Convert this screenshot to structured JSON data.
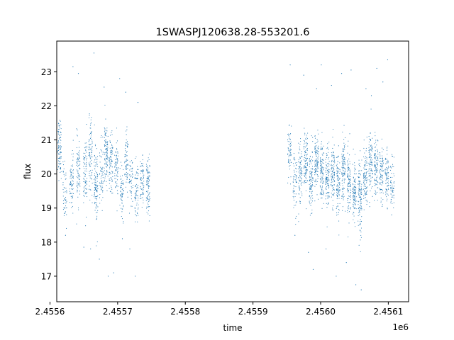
{
  "chart_data": {
    "type": "scatter",
    "title": "1SWASPJ120638.28-553201.6",
    "xlabel": "time",
    "ylabel": "flux",
    "x_offset_label": "1e6",
    "xlim": [
      2.45561,
      2.45613
    ],
    "ylim": [
      16.25,
      23.9
    ],
    "x_ticks": [
      2.4556,
      2.4557,
      2.4558,
      2.4559,
      2.456,
      2.4561
    ],
    "x_tick_labels": [
      "2.4556",
      "2.4557",
      "2.4558",
      "2.4559",
      "2.4560",
      "2.4561"
    ],
    "y_ticks": [
      17,
      18,
      19,
      20,
      21,
      22,
      23
    ],
    "y_tick_labels": [
      "17",
      "18",
      "19",
      "20",
      "21",
      "22",
      "23"
    ],
    "grid": false,
    "marker_color": "#1f77b4",
    "series": [
      {
        "name": "",
        "clusters": [
          {
            "x": 2.455614,
            "center": 20.8,
            "spread": 0.55,
            "n": 90
          },
          {
            "x": 2.455622,
            "center": 19.4,
            "spread": 0.6,
            "n": 50
          },
          {
            "x": 2.455632,
            "center": 19.8,
            "spread": 0.55,
            "n": 70
          },
          {
            "x": 2.455642,
            "center": 20.1,
            "spread": 0.6,
            "n": 80
          },
          {
            "x": 2.455652,
            "center": 20.0,
            "spread": 0.7,
            "n": 80
          },
          {
            "x": 2.45566,
            "center": 20.5,
            "spread": 0.7,
            "n": 90
          },
          {
            "x": 2.455668,
            "center": 19.6,
            "spread": 0.8,
            "n": 110
          },
          {
            "x": 2.455676,
            "center": 20.0,
            "spread": 0.6,
            "n": 60
          },
          {
            "x": 2.455683,
            "center": 20.6,
            "spread": 0.6,
            "n": 100
          },
          {
            "x": 2.45569,
            "center": 20.3,
            "spread": 0.55,
            "n": 80
          },
          {
            "x": 2.455698,
            "center": 20.2,
            "spread": 0.6,
            "n": 70
          },
          {
            "x": 2.455706,
            "center": 19.5,
            "spread": 0.6,
            "n": 60
          },
          {
            "x": 2.455713,
            "center": 20.4,
            "spread": 0.55,
            "n": 70
          },
          {
            "x": 2.45572,
            "center": 19.6,
            "spread": 0.55,
            "n": 50
          },
          {
            "x": 2.455728,
            "center": 19.5,
            "spread": 0.6,
            "n": 70
          },
          {
            "x": 2.455736,
            "center": 19.7,
            "spread": 0.5,
            "n": 70
          },
          {
            "x": 2.455745,
            "center": 19.7,
            "spread": 0.55,
            "n": 90
          },
          {
            "x": 2.455954,
            "center": 20.6,
            "spread": 0.5,
            "n": 60
          },
          {
            "x": 2.455962,
            "center": 19.7,
            "spread": 0.6,
            "n": 60
          },
          {
            "x": 2.45597,
            "center": 20.1,
            "spread": 0.6,
            "n": 90
          },
          {
            "x": 2.455978,
            "center": 20.3,
            "spread": 0.6,
            "n": 100
          },
          {
            "x": 2.455986,
            "center": 19.9,
            "spread": 0.6,
            "n": 100
          },
          {
            "x": 2.455994,
            "center": 20.3,
            "spread": 0.6,
            "n": 110
          },
          {
            "x": 2.456002,
            "center": 20.0,
            "spread": 0.65,
            "n": 110
          },
          {
            "x": 2.45601,
            "center": 19.8,
            "spread": 0.6,
            "n": 110
          },
          {
            "x": 2.456018,
            "center": 19.9,
            "spread": 0.6,
            "n": 100
          },
          {
            "x": 2.456026,
            "center": 19.7,
            "spread": 0.6,
            "n": 100
          },
          {
            "x": 2.456034,
            "center": 20.2,
            "spread": 0.65,
            "n": 110
          },
          {
            "x": 2.456042,
            "center": 19.8,
            "spread": 0.65,
            "n": 100
          },
          {
            "x": 2.45605,
            "center": 19.5,
            "spread": 0.6,
            "n": 100
          },
          {
            "x": 2.456058,
            "center": 19.3,
            "spread": 0.7,
            "n": 120
          },
          {
            "x": 2.456066,
            "center": 19.9,
            "spread": 0.6,
            "n": 100
          },
          {
            "x": 2.456074,
            "center": 20.3,
            "spread": 0.6,
            "n": 100
          },
          {
            "x": 2.456082,
            "center": 20.2,
            "spread": 0.6,
            "n": 100
          },
          {
            "x": 2.45609,
            "center": 20.0,
            "spread": 0.55,
            "n": 90
          },
          {
            "x": 2.456098,
            "center": 19.9,
            "spread": 0.5,
            "n": 80
          },
          {
            "x": 2.456106,
            "center": 19.7,
            "spread": 0.5,
            "n": 60
          }
        ],
        "outliers": [
          {
            "x": 2.455623,
            "y": 18.2
          },
          {
            "x": 2.455634,
            "y": 23.15
          },
          {
            "x": 2.455642,
            "y": 22.95
          },
          {
            "x": 2.45565,
            "y": 17.85
          },
          {
            "x": 2.45566,
            "y": 17.8
          },
          {
            "x": 2.455665,
            "y": 23.55
          },
          {
            "x": 2.455673,
            "y": 17.5
          },
          {
            "x": 2.45568,
            "y": 22.55
          },
          {
            "x": 2.455686,
            "y": 17.0
          },
          {
            "x": 2.455694,
            "y": 17.1
          },
          {
            "x": 2.455703,
            "y": 22.8
          },
          {
            "x": 2.455707,
            "y": 18.1
          },
          {
            "x": 2.455712,
            "y": 22.4
          },
          {
            "x": 2.455718,
            "y": 17.8
          },
          {
            "x": 2.455726,
            "y": 17.0
          },
          {
            "x": 2.45573,
            "y": 22.1
          },
          {
            "x": 2.455955,
            "y": 23.2
          },
          {
            "x": 2.455962,
            "y": 18.2
          },
          {
            "x": 2.455975,
            "y": 22.9
          },
          {
            "x": 2.455982,
            "y": 17.7
          },
          {
            "x": 2.455989,
            "y": 17.2
          },
          {
            "x": 2.455994,
            "y": 22.5
          },
          {
            "x": 2.456001,
            "y": 23.2
          },
          {
            "x": 2.456008,
            "y": 17.8
          },
          {
            "x": 2.456016,
            "y": 22.6
          },
          {
            "x": 2.456023,
            "y": 17.0
          },
          {
            "x": 2.456031,
            "y": 22.95
          },
          {
            "x": 2.456038,
            "y": 17.4
          },
          {
            "x": 2.456045,
            "y": 23.05
          },
          {
            "x": 2.456052,
            "y": 16.75
          },
          {
            "x": 2.45606,
            "y": 16.6
          },
          {
            "x": 2.456067,
            "y": 22.5
          },
          {
            "x": 2.456075,
            "y": 22.3
          },
          {
            "x": 2.456083,
            "y": 23.1
          },
          {
            "x": 2.456092,
            "y": 22.7
          },
          {
            "x": 2.456099,
            "y": 23.35
          },
          {
            "x": 2.456105,
            "y": 18.8
          }
        ]
      }
    ]
  }
}
